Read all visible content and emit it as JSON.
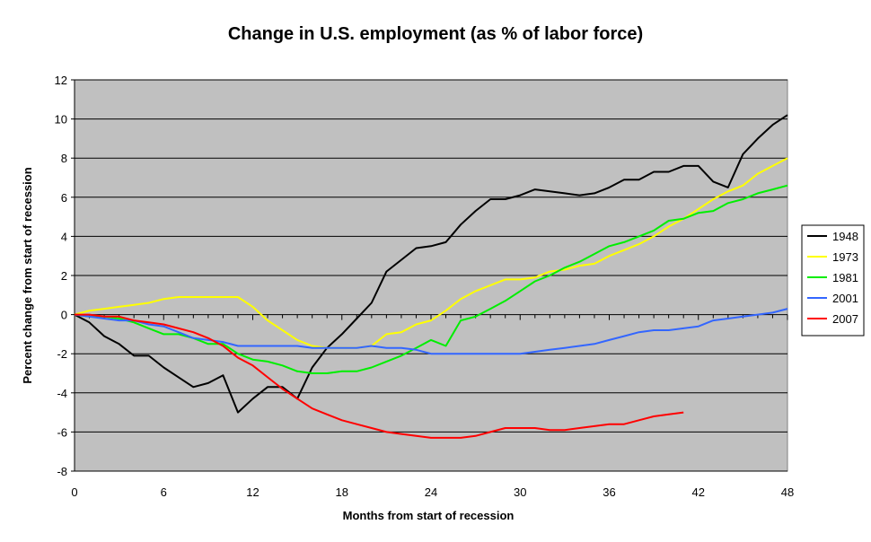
{
  "chart_data": {
    "type": "line",
    "title": "Change in U.S. employment (as % of labor force)",
    "xlabel": "Months from start of recession",
    "ylabel": "Percent change from start of recession",
    "xlim": [
      0,
      48
    ],
    "ylim": [
      -8,
      12
    ],
    "x_ticks": [
      0,
      6,
      12,
      18,
      24,
      30,
      36,
      42,
      48
    ],
    "y_ticks": [
      -8,
      -6,
      -4,
      -2,
      0,
      2,
      4,
      6,
      8,
      10,
      12
    ],
    "grid": true,
    "legend_position": "right",
    "plot_background": "#c0c0c0",
    "series": [
      {
        "name": "1948",
        "color": "#000000",
        "x": [
          0,
          1,
          2,
          3,
          4,
          5,
          6,
          7,
          8,
          9,
          10,
          11,
          12,
          13,
          14,
          15,
          16,
          17,
          18,
          19,
          20,
          21,
          22,
          23,
          24,
          25,
          26,
          27,
          28,
          29,
          30,
          31,
          32,
          33,
          34,
          35,
          36,
          37,
          38,
          39,
          40,
          41,
          42,
          43,
          44,
          45,
          46,
          47,
          48
        ],
        "y": [
          0,
          -0.4,
          -1.1,
          -1.5,
          -2.1,
          -2.1,
          -2.7,
          -3.2,
          -3.7,
          -3.5,
          -3.1,
          -5.0,
          -4.3,
          -3.7,
          -3.7,
          -4.3,
          -2.7,
          -1.7,
          -1.0,
          -0.2,
          0.6,
          2.2,
          2.8,
          3.4,
          3.5,
          3.7,
          4.6,
          5.3,
          5.9,
          5.9,
          6.1,
          6.4,
          6.3,
          6.2,
          6.1,
          6.2,
          6.5,
          6.9,
          6.9,
          7.3,
          7.3,
          7.6,
          7.6,
          6.8,
          6.5,
          8.2,
          9.0,
          9.7,
          10.2
        ]
      },
      {
        "name": "1973",
        "color": "#ffff00",
        "x": [
          0,
          1,
          2,
          3,
          4,
          5,
          6,
          7,
          8,
          9,
          10,
          11,
          12,
          13,
          14,
          15,
          16,
          17,
          18,
          19,
          20,
          21,
          22,
          23,
          24,
          25,
          26,
          27,
          28,
          29,
          30,
          31,
          32,
          33,
          34,
          35,
          36,
          37,
          38,
          39,
          40,
          41,
          42,
          43,
          44,
          45,
          46,
          47,
          48
        ],
        "y": [
          0,
          0.2,
          0.3,
          0.4,
          0.5,
          0.6,
          0.8,
          0.9,
          0.9,
          0.9,
          0.9,
          0.9,
          0.4,
          -0.3,
          -0.8,
          -1.3,
          -1.6,
          -1.7,
          -1.7,
          -1.7,
          -1.6,
          -1.0,
          -0.9,
          -0.5,
          -0.3,
          0.2,
          0.8,
          1.2,
          1.5,
          1.8,
          1.8,
          1.9,
          2.2,
          2.3,
          2.5,
          2.6,
          3.0,
          3.3,
          3.6,
          4.0,
          4.5,
          4.9,
          5.4,
          5.9,
          6.3,
          6.6,
          7.2,
          7.6,
          8.0
        ]
      },
      {
        "name": "1981",
        "color": "#00ee00",
        "x": [
          0,
          1,
          2,
          3,
          4,
          5,
          6,
          7,
          8,
          9,
          10,
          11,
          12,
          13,
          14,
          15,
          16,
          17,
          18,
          19,
          20,
          21,
          22,
          23,
          24,
          25,
          26,
          27,
          28,
          29,
          30,
          31,
          32,
          33,
          34,
          35,
          36,
          37,
          38,
          39,
          40,
          41,
          42,
          43,
          44,
          45,
          46,
          47,
          48
        ],
        "y": [
          0,
          -0.1,
          -0.1,
          -0.2,
          -0.4,
          -0.7,
          -1.0,
          -1.0,
          -1.2,
          -1.5,
          -1.5,
          -2.0,
          -2.3,
          -2.4,
          -2.6,
          -2.9,
          -3.0,
          -3.0,
          -2.9,
          -2.9,
          -2.7,
          -2.4,
          -2.1,
          -1.7,
          -1.3,
          -1.6,
          -0.3,
          -0.1,
          0.3,
          0.7,
          1.2,
          1.7,
          2.0,
          2.4,
          2.7,
          3.1,
          3.5,
          3.7,
          4.0,
          4.3,
          4.8,
          4.9,
          5.2,
          5.3,
          5.7,
          5.9,
          6.2,
          6.4,
          6.6
        ]
      },
      {
        "name": "2001",
        "color": "#3366ff",
        "x": [
          0,
          1,
          2,
          3,
          4,
          5,
          6,
          7,
          8,
          9,
          10,
          11,
          12,
          13,
          14,
          15,
          16,
          17,
          18,
          19,
          20,
          21,
          22,
          23,
          24,
          25,
          26,
          27,
          28,
          29,
          30,
          31,
          32,
          33,
          34,
          35,
          36,
          37,
          38,
          39,
          40,
          41,
          42,
          43,
          44,
          45,
          46,
          47,
          48
        ],
        "y": [
          0,
          -0.1,
          -0.2,
          -0.3,
          -0.3,
          -0.5,
          -0.6,
          -0.9,
          -1.2,
          -1.3,
          -1.4,
          -1.6,
          -1.6,
          -1.6,
          -1.6,
          -1.6,
          -1.7,
          -1.7,
          -1.7,
          -1.7,
          -1.6,
          -1.7,
          -1.7,
          -1.8,
          -2.0,
          -2.0,
          -2.0,
          -2.0,
          -2.0,
          -2.0,
          -2.0,
          -1.9,
          -1.8,
          -1.7,
          -1.6,
          -1.5,
          -1.3,
          -1.1,
          -0.9,
          -0.8,
          -0.8,
          -0.7,
          -0.6,
          -0.3,
          -0.2,
          -0.1,
          0,
          0.1,
          0.3
        ]
      },
      {
        "name": "2007",
        "color": "#ff0000",
        "x": [
          0,
          1,
          2,
          3,
          4,
          5,
          6,
          7,
          8,
          9,
          10,
          11,
          12,
          13,
          14,
          15,
          16,
          17,
          18,
          19,
          20,
          21,
          22,
          23,
          24,
          25,
          26,
          27,
          28,
          29,
          30,
          31,
          32,
          33,
          34,
          35,
          36,
          37,
          38,
          39,
          40,
          41
        ],
        "y": [
          0,
          0,
          -0.1,
          -0.1,
          -0.3,
          -0.4,
          -0.5,
          -0.7,
          -0.9,
          -1.2,
          -1.6,
          -2.2,
          -2.6,
          -3.2,
          -3.8,
          -4.3,
          -4.8,
          -5.1,
          -5.4,
          -5.6,
          -5.8,
          -6.0,
          -6.1,
          -6.2,
          -6.3,
          -6.3,
          -6.3,
          -6.2,
          -6.0,
          -5.8,
          -5.8,
          -5.8,
          -5.9,
          -5.9,
          -5.8,
          -5.7,
          -5.6,
          -5.6,
          -5.4,
          -5.2,
          -5.1,
          -5.0
        ]
      }
    ]
  }
}
